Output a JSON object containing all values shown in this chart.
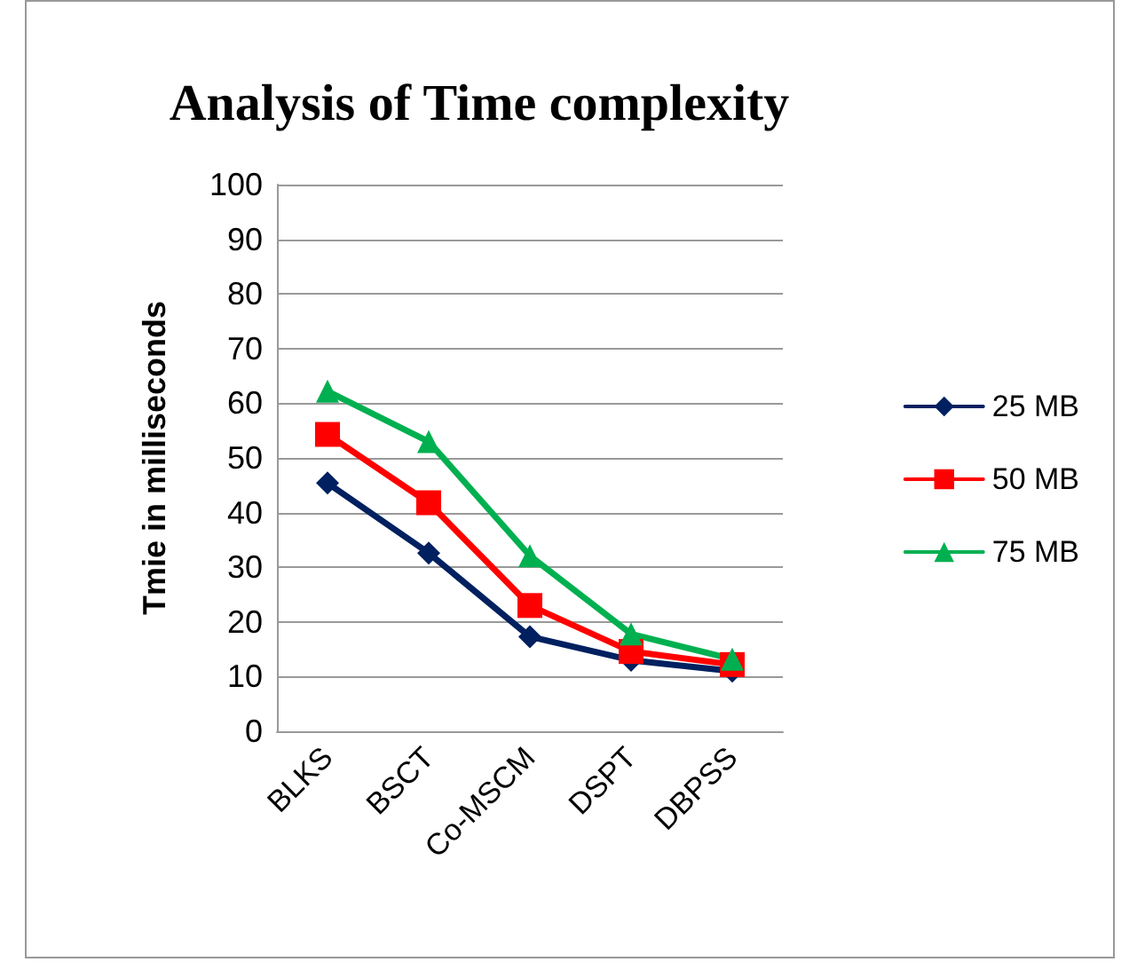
{
  "chart_data": {
    "type": "line",
    "title": "Analysis of Time complexity",
    "ylabel": "Tmie in milliseconds",
    "categories": [
      "BLKS",
      "BSCT",
      "Co-MSCM",
      "DSPT",
      "DBPSS"
    ],
    "series": [
      {
        "name": "25 MB",
        "color": "#002060",
        "marker": "diamond",
        "values": [
          45.4,
          32.6,
          17.3,
          13,
          11
        ]
      },
      {
        "name": "50 MB",
        "color": "#ff0000",
        "marker": "square",
        "values": [
          54.3,
          41.8,
          23,
          14.6,
          12.2
        ]
      },
      {
        "name": "75 MB",
        "color": "#00b050",
        "marker": "triangle",
        "values": [
          62.2,
          53,
          32.1,
          17.8,
          13.2
        ]
      }
    ],
    "ylim": [
      0,
      100
    ],
    "yticks": [
      0,
      10,
      20,
      30,
      40,
      50,
      60,
      70,
      80,
      90,
      100
    ],
    "grid": "y",
    "legend": "right"
  }
}
